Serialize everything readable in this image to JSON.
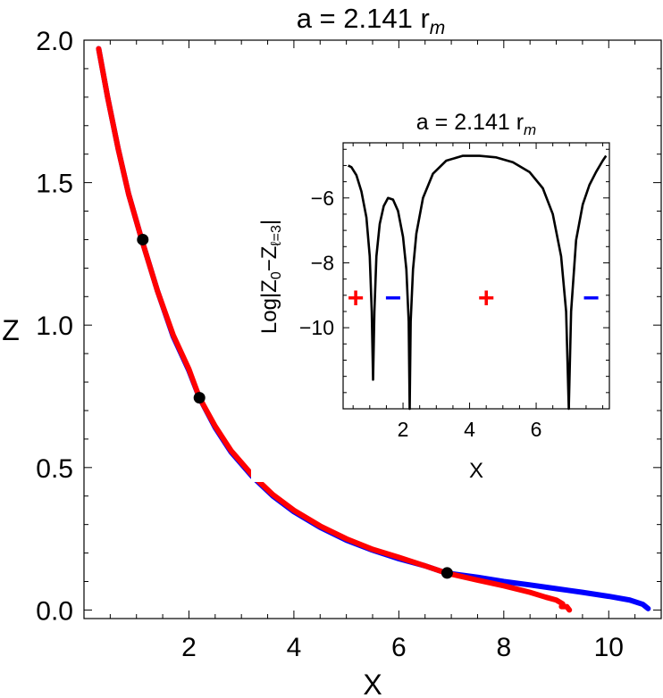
{
  "chart_data": [
    {
      "id": "main",
      "type": "line",
      "title": "a = 2.141 r",
      "title_sub": "m",
      "xlabel": "X",
      "ylabel": "Z",
      "xlim": [
        0,
        11
      ],
      "ylim": [
        -0.03,
        2.0
      ],
      "x_ticks": [
        2,
        4,
        6,
        8,
        10
      ],
      "y_ticks": [
        0.0,
        0.5,
        1.0,
        1.5,
        2.0
      ],
      "x_tick_labels": [
        "2",
        "4",
        "6",
        "8",
        "10"
      ],
      "y_tick_labels": [
        "0.0",
        "0.5",
        "1.0",
        "1.5",
        "2.0"
      ],
      "grid": false,
      "series": [
        {
          "color": "#0000ff",
          "points": [
            [
              0.28,
              1.97
            ],
            [
              0.45,
              1.8
            ],
            [
              0.65,
              1.62
            ],
            [
              0.85,
              1.46
            ],
            [
              1.1,
              1.3
            ],
            [
              1.4,
              1.12
            ],
            [
              1.7,
              0.96
            ],
            [
              2.0,
              0.84
            ],
            [
              2.2,
              0.745
            ],
            [
              2.5,
              0.64
            ],
            [
              2.8,
              0.555
            ],
            [
              3.2,
              0.47
            ],
            [
              3.6,
              0.4
            ],
            [
              4.0,
              0.345
            ],
            [
              4.5,
              0.29
            ],
            [
              5.0,
              0.245
            ],
            [
              5.5,
              0.21
            ],
            [
              6.0,
              0.18
            ],
            [
              6.5,
              0.155
            ],
            [
              6.9,
              0.13
            ],
            [
              7.5,
              0.115
            ],
            [
              8.0,
              0.1
            ],
            [
              8.5,
              0.088
            ],
            [
              9.0,
              0.075
            ],
            [
              9.5,
              0.062
            ],
            [
              10.0,
              0.048
            ],
            [
              10.4,
              0.035
            ],
            [
              10.65,
              0.02
            ],
            [
              10.75,
              0.005
            ]
          ]
        },
        {
          "color": "#ff0000",
          "points": [
            [
              0.28,
              1.97
            ],
            [
              0.45,
              1.8
            ],
            [
              0.65,
              1.62
            ],
            [
              0.85,
              1.46
            ],
            [
              1.1,
              1.3
            ],
            [
              1.4,
              1.12
            ],
            [
              1.7,
              0.965
            ],
            [
              2.0,
              0.845
            ],
            [
              2.2,
              0.745
            ],
            [
              2.5,
              0.645
            ],
            [
              2.8,
              0.56
            ],
            [
              3.2,
              0.475
            ],
            [
              3.6,
              0.405
            ],
            [
              4.0,
              0.35
            ],
            [
              4.5,
              0.295
            ],
            [
              5.0,
              0.25
            ],
            [
              5.5,
              0.213
            ],
            [
              6.0,
              0.185
            ],
            [
              6.5,
              0.155
            ],
            [
              6.9,
              0.13
            ],
            [
              7.5,
              0.105
            ],
            [
              8.0,
              0.085
            ],
            [
              8.5,
              0.062
            ],
            [
              8.8,
              0.045
            ],
            [
              9.0,
              0.035
            ],
            [
              9.12,
              0.022
            ],
            [
              9.1,
              0.012
            ],
            [
              9.2,
              0.012
            ],
            [
              9.25,
              0.0
            ]
          ]
        }
      ],
      "markers": [
        {
          "x": 1.12,
          "y": 1.3,
          "color": "#000000"
        },
        {
          "x": 2.2,
          "y": 0.745,
          "color": "#000000"
        },
        {
          "x": 6.92,
          "y": 0.13,
          "color": "#000000"
        }
      ]
    },
    {
      "id": "inset",
      "type": "line",
      "title": "a = 2.141 r",
      "title_sub": "m",
      "xlabel": "X",
      "ylabel_parts": [
        "Log|Z",
        "0",
        "−Z",
        "ℓ=3",
        "|"
      ],
      "xlim": [
        0.2,
        8.2
      ],
      "ylim": [
        -12.5,
        -4.3
      ],
      "x_ticks": [
        2,
        4,
        6
      ],
      "y_ticks": [
        -6,
        -8,
        -10
      ],
      "x_tick_labels": [
        "2",
        "4",
        "6"
      ],
      "y_tick_labels": [
        "−6",
        "−8",
        "−10"
      ],
      "grid": false,
      "series": [
        {
          "color": "#000000",
          "points": [
            [
              0.35,
              -5.0
            ],
            [
              0.45,
              -5.05
            ],
            [
              0.6,
              -5.3
            ],
            [
              0.75,
              -5.8
            ],
            [
              0.9,
              -6.6
            ],
            [
              1.0,
              -7.8
            ],
            [
              1.06,
              -9.5
            ],
            [
              1.1,
              -11.6
            ],
            [
              1.14,
              -9.5
            ],
            [
              1.2,
              -7.8
            ],
            [
              1.3,
              -6.8
            ],
            [
              1.42,
              -6.25
            ],
            [
              1.55,
              -6.0
            ],
            [
              1.7,
              -6.05
            ],
            [
              1.85,
              -6.4
            ],
            [
              2.0,
              -7.2
            ],
            [
              2.1,
              -8.2
            ],
            [
              2.17,
              -9.8
            ],
            [
              2.2,
              -12.5
            ],
            [
              2.23,
              -9.8
            ],
            [
              2.3,
              -8.2
            ],
            [
              2.4,
              -7.1
            ],
            [
              2.6,
              -6.0
            ],
            [
              2.9,
              -5.25
            ],
            [
              3.3,
              -4.85
            ],
            [
              3.8,
              -4.7
            ],
            [
              4.3,
              -4.7
            ],
            [
              4.8,
              -4.75
            ],
            [
              5.3,
              -4.9
            ],
            [
              5.8,
              -5.2
            ],
            [
              6.2,
              -5.7
            ],
            [
              6.5,
              -6.5
            ],
            [
              6.75,
              -7.8
            ],
            [
              6.9,
              -9.5
            ],
            [
              6.98,
              -12.5
            ],
            [
              7.05,
              -9.5
            ],
            [
              7.2,
              -7.3
            ],
            [
              7.4,
              -6.2
            ],
            [
              7.6,
              -5.6
            ],
            [
              7.8,
              -5.2
            ],
            [
              8.0,
              -4.85
            ],
            [
              8.1,
              -4.7
            ]
          ]
        }
      ],
      "annotations": [
        {
          "text": "+",
          "x": 0.58,
          "y": -9.1,
          "color": "#ff0000"
        },
        {
          "text": "−",
          "x": 1.7,
          "y": -9.1,
          "color": "#0000ff"
        },
        {
          "text": "+",
          "x": 4.5,
          "y": -9.1,
          "color": "#ff0000"
        },
        {
          "text": "−",
          "x": 7.65,
          "y": -9.1,
          "color": "#0000ff"
        }
      ]
    }
  ]
}
